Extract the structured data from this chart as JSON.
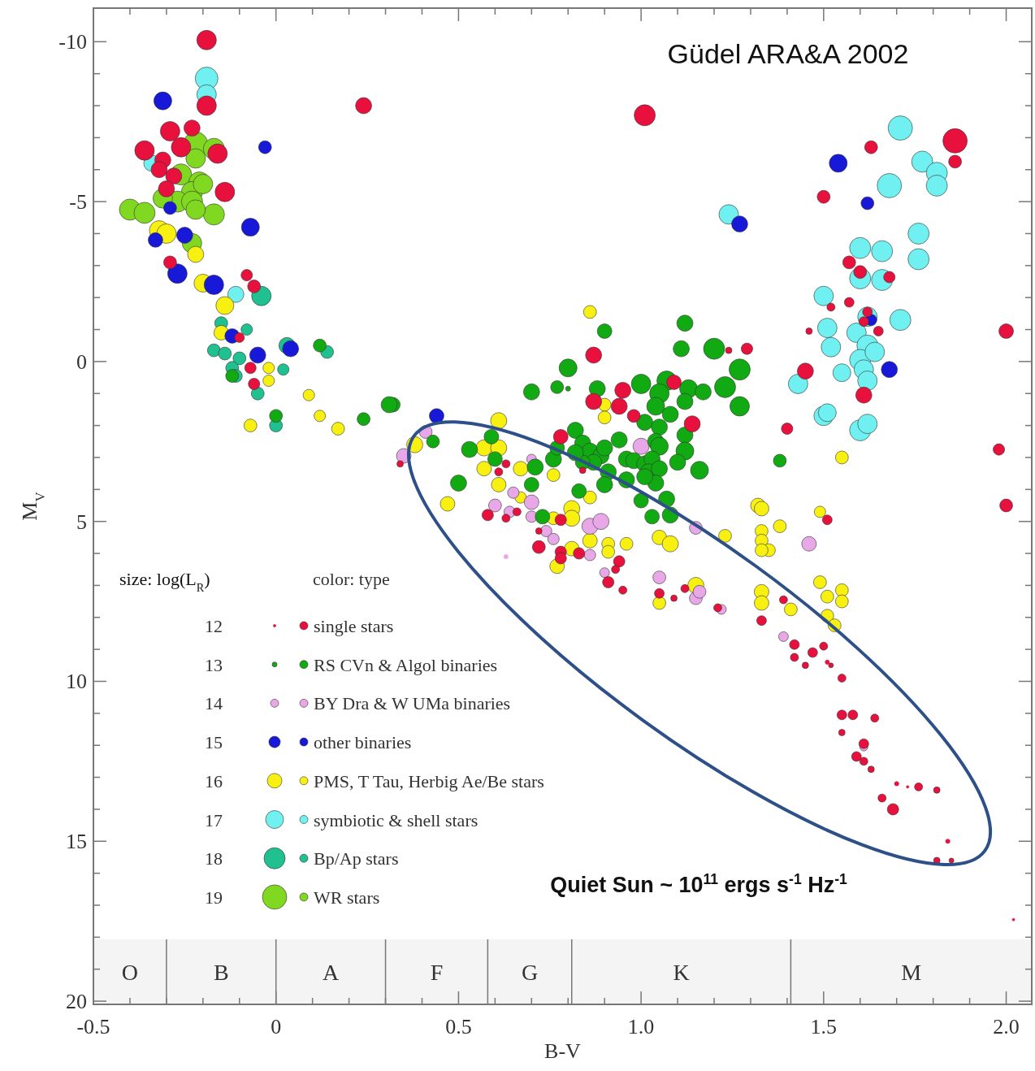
{
  "chart_data": {
    "type": "bubble",
    "xlabel": "B-V",
    "ylabel": "M$_{V}$",
    "legend_title": "color: type",
    "legend": "bottom left",
    "annotations": [
      "Güdel ARA&A 2002",
      "Quiet Sun ~ 10$^{11}$ ergs s$^{-1}$ Hz$^{-1}$",
      "size: log(L$_{R}$)"
    ],
    "xlim": [
      -0.5,
      2.07
    ],
    "ylim": [
      20.1,
      -11.05
    ],
    "xticks": [
      -0.5,
      {
        "value": -0.4,
        "label": null
      },
      {
        "value": -0.3,
        "label": null
      },
      {
        "value": -0.2,
        "label": null
      },
      {
        "value": -0.1,
        "label": null
      },
      0,
      {
        "value": 0.1,
        "label": null
      },
      {
        "value": 0.2,
        "label": null
      },
      {
        "value": 0.3,
        "label": null
      },
      {
        "value": 0.4,
        "label": null
      },
      0.5,
      {
        "value": 0.6,
        "label": null
      },
      {
        "value": 0.7,
        "label": null
      },
      {
        "value": 0.8,
        "label": null
      },
      {
        "value": 0.9,
        "label": null
      },
      {
        "value": 1,
        "label": "1.0"
      },
      {
        "value": 1.1,
        "label": null
      },
      {
        "value": 1.2,
        "label": null
      },
      {
        "value": 1.3,
        "label": null
      },
      {
        "value": 1.4,
        "label": null
      },
      1.5,
      {
        "value": 1.6,
        "label": null
      },
      {
        "value": 1.7,
        "label": null
      },
      {
        "value": 1.8,
        "label": null
      },
      {
        "value": 1.9,
        "label": null
      },
      {
        "value": 2,
        "label": "2.0"
      }
    ],
    "yticks": [
      -10,
      {
        "value": -9,
        "label": null
      },
      {
        "value": -8,
        "label": null
      },
      {
        "value": -7,
        "label": null
      },
      {
        "value": -6,
        "label": null
      },
      -5,
      {
        "value": -4,
        "label": null
      },
      {
        "value": -3,
        "label": null
      },
      {
        "value": -2,
        "label": null
      },
      {
        "value": -1,
        "label": null
      },
      0,
      {
        "value": 1,
        "label": null
      },
      {
        "value": 2,
        "label": null
      },
      {
        "value": 3,
        "label": null
      },
      {
        "value": 4,
        "label": null
      },
      5,
      {
        "value": 6,
        "label": null
      },
      {
        "value": 7,
        "label": null
      },
      {
        "value": 8,
        "label": null
      },
      {
        "value": 9,
        "label": null
      },
      10,
      {
        "value": 11,
        "label": null
      },
      {
        "value": 12,
        "label": null
      },
      {
        "value": 13,
        "label": null
      },
      {
        "value": 14,
        "label": null
      },
      15,
      {
        "value": 16,
        "label": null
      },
      {
        "value": 17,
        "label": null
      },
      {
        "value": 18,
        "label": null
      },
      {
        "value": 19,
        "label": null
      },
      20
    ],
    "size_legend": [
      {
        "value": 0.01,
        "label": "12"
      },
      {
        "value": 0.04,
        "label": "13"
      },
      {
        "value": 0.11,
        "label": "14"
      },
      {
        "value": 0.22,
        "label": "15"
      },
      {
        "value": 0.36,
        "label": "16"
      },
      {
        "value": 0.54,
        "label": "17"
      },
      {
        "value": 0.75,
        "label": "18"
      },
      {
        "value": 1,
        "label": "19"
      }
    ],
    "bands": [
      {
        "axis": "x",
        "from": -0.5,
        "to": -0.3,
        "label": "O",
        "color": "#f4f4f4"
      },
      {
        "axis": "x",
        "from": -0.3,
        "to": 0,
        "label": "B",
        "color": "#f4f4f4"
      },
      {
        "axis": "x",
        "from": 0,
        "to": 0.3,
        "label": "A",
        "color": "#f4f4f4"
      },
      {
        "axis": "x",
        "from": 0.3,
        "to": 0.58,
        "label": "F",
        "color": "#f4f4f4"
      },
      {
        "axis": "x",
        "from": 0.58,
        "to": 0.81,
        "label": "G",
        "color": "#f4f4f4"
      },
      {
        "axis": "x",
        "from": 0.81,
        "to": 1.41,
        "label": "K",
        "color": "#f4f4f4"
      },
      {
        "axis": "x",
        "from": 1.41,
        "to": 2.07,
        "label": "M",
        "color": "#f4f4f4"
      }
    ],
    "series": [
      {
        "name": "single stars",
        "color": "#e8103c",
        "x": [
          -0.19,
          -0.19,
          0.24,
          1.01,
          1.86,
          1.63,
          1.86,
          -0.36,
          -0.29,
          -0.23,
          -0.26,
          -0.31,
          -0.16,
          -0.28,
          -0.32,
          -0.14,
          -0.3,
          -0.29,
          -0.08,
          -0.06,
          -0.1,
          -0.07,
          -0.06,
          1.5,
          1.57,
          1.6,
          1.68,
          1.57,
          1.52,
          1.46,
          1.65,
          1.61,
          1.62,
          1.61,
          1.45,
          1.4,
          2.0,
          1.98,
          2.0,
          1.51,
          0.87,
          0.87,
          0.95,
          0.94,
          0.98,
          1.14,
          1.09,
          1.29,
          1.24,
          0.78,
          0.84,
          0.34,
          0.61,
          0.63,
          0.58,
          0.63,
          0.66,
          0.72,
          0.72,
          0.78,
          0.78,
          0.83,
          0.78,
          0.94,
          0.93,
          0.91,
          0.95,
          1.05,
          1.12,
          1.09,
          1.21,
          1.33,
          1.39,
          1.42,
          1.42,
          1.45,
          1.47,
          1.5,
          1.51,
          1.52,
          1.55,
          1.55,
          1.58,
          1.64,
          1.55,
          1.61,
          1.59,
          1.61,
          1.63,
          1.66,
          1.69,
          1.7,
          1.73,
          1.76,
          1.81,
          1.84,
          1.81,
          1.85,
          2.02
        ],
        "values": [
          -10.05,
          -8.0,
          -8.0,
          -7.7,
          -6.9,
          -6.7,
          -6.25,
          -6.6,
          -7.2,
          -7.3,
          -6.7,
          -6.3,
          -6.5,
          -5.8,
          -6.0,
          -5.3,
          -5.4,
          -3.1,
          -2.7,
          -2.35,
          -0.75,
          0.2,
          0.7,
          -5.15,
          -3.1,
          -2.8,
          -2.64,
          -1.85,
          -1.7,
          -0.95,
          -0.95,
          -1.25,
          -1.55,
          1.05,
          0.3,
          2.1,
          -0.95,
          2.75,
          4.5,
          4.95,
          -0.2,
          1.25,
          0.9,
          1.4,
          1.7,
          1.95,
          0.65,
          -0.4,
          -0.35,
          2.35,
          3.4,
          3.2,
          3.45,
          3.2,
          4.8,
          4.9,
          4.7,
          5.3,
          5.8,
          4.95,
          5.95,
          6.0,
          6.15,
          6.25,
          6.5,
          6.9,
          7.15,
          7.25,
          7.1,
          7.4,
          7.7,
          8.1,
          7.45,
          8.85,
          9.25,
          9.5,
          9.1,
          8.9,
          9.4,
          9.5,
          9.9,
          11.05,
          11.05,
          11.15,
          11.6,
          11.95,
          12.35,
          12.5,
          12.75,
          13.65,
          14.0,
          13.2,
          13.3,
          13.3,
          13.4,
          15.0,
          15.6,
          15.6,
          17.45
        ],
        "sizes": [
          0.64,
          0.64,
          0.44,
          0.75,
          1,
          0.28,
          0.28,
          0.64,
          0.64,
          0.44,
          0.64,
          0.44,
          0.64,
          0.44,
          0.44,
          0.64,
          0.44,
          0.28,
          0.22,
          0.28,
          0.16,
          0.22,
          0.22,
          0.28,
          0.28,
          0.28,
          0.22,
          0.16,
          0.11,
          0.07,
          0.16,
          0.16,
          0.16,
          0.44,
          0.44,
          0.22,
          0.36,
          0.22,
          0.28,
          0.16,
          0.44,
          0.44,
          0.44,
          0.44,
          0.28,
          0.44,
          0.36,
          0.22,
          0.07,
          0.36,
          0.07,
          0.07,
          0.11,
          0.11,
          0.22,
          0.11,
          0.11,
          0.07,
          0.28,
          0.22,
          0.22,
          0.22,
          0.22,
          0.22,
          0.11,
          0.22,
          0.11,
          0.16,
          0.11,
          0.07,
          0.11,
          0.16,
          0.11,
          0.16,
          0.11,
          0.07,
          0.16,
          0.11,
          0.03,
          0.04,
          0.11,
          0.16,
          0.16,
          0.11,
          0.07,
          0.16,
          0.16,
          0.11,
          0.07,
          0.11,
          0.22,
          0.03,
          0.01,
          0.11,
          0.07,
          0.03,
          0.07,
          0.04,
          0.01
        ]
      },
      {
        "name": "RS CVn & Algol binaries",
        "color": "#12aa12",
        "x": [
          1.12,
          0.9,
          1.11,
          1.2,
          1.27,
          1.23,
          1.27,
          0.8,
          0.7,
          0.77,
          0.8,
          0.88,
          1.0,
          1.07,
          1.05,
          1.13,
          1.17,
          1.12,
          1.04,
          1.08,
          1.01,
          1.05,
          1.04,
          1.12,
          1.12,
          0.94,
          1.05,
          1.1,
          1.16,
          0.96,
          0.98,
          1.01,
          1.03,
          1.02,
          1.05,
          1.04,
          1.01,
          0.96,
          1.07,
          1.0,
          1.03,
          1.08,
          0.82,
          0.84,
          0.86,
          0.89,
          0.9,
          0.87,
          0.84,
          0.76,
          0.77,
          0.82,
          0.91,
          0.9,
          0.83,
          0.7,
          0.71,
          0.6,
          0.59,
          0.53,
          0.5,
          0.43,
          0.32,
          0.73,
          -0.12,
          0.12,
          0.0,
          0.24,
          0.31,
          1.38
        ],
        "values": [
          -1.2,
          -0.95,
          -0.4,
          -0.4,
          0.25,
          0.8,
          1.4,
          0.2,
          0.95,
          0.8,
          0.85,
          0.85,
          0.7,
          0.6,
          1.0,
          0.85,
          0.95,
          1.25,
          1.4,
          1.65,
          1.9,
          2.05,
          2.5,
          2.3,
          2.8,
          2.45,
          2.65,
          3.15,
          3.4,
          3.05,
          3.1,
          3.2,
          3.05,
          3.45,
          3.35,
          3.8,
          3.6,
          3.7,
          4.3,
          4.35,
          4.85,
          4.8,
          2.15,
          2.55,
          2.8,
          2.95,
          2.7,
          3.15,
          3.15,
          3.05,
          2.7,
          2.85,
          3.45,
          3.85,
          4.05,
          3.85,
          3.3,
          3.05,
          2.35,
          2.75,
          3.8,
          2.5,
          1.35,
          4.85,
          0.45,
          -0.5,
          1.7,
          1.8,
          1.35,
          3.1
        ],
        "sizes": [
          0.44,
          0.36,
          0.44,
          0.75,
          0.75,
          0.75,
          0.64,
          0.54,
          0.44,
          0.28,
          0.04,
          0.44,
          0.64,
          0.64,
          0.64,
          0.54,
          0.44,
          0.44,
          0.54,
          0.44,
          0.44,
          0.44,
          0.44,
          0.44,
          0.54,
          0.44,
          0.54,
          0.44,
          0.54,
          0.44,
          0.44,
          0.44,
          0.44,
          0.44,
          0.44,
          0.44,
          0.44,
          0.44,
          0.44,
          0.36,
          0.36,
          0.44,
          0.44,
          0.44,
          0.44,
          0.44,
          0.44,
          0.44,
          0.36,
          0.44,
          0.36,
          0.44,
          0.44,
          0.44,
          0.36,
          0.36,
          0.44,
          0.36,
          0.36,
          0.44,
          0.44,
          0.28,
          0.36,
          0.36,
          0.28,
          0.28,
          0.28,
          0.28,
          0.44,
          0.28
        ]
      },
      {
        "name": "BY Dra & W UMa binaries",
        "color": "#e8a8e8",
        "x": [
          0.41,
          0.35,
          0.7,
          1.0,
          0.7,
          0.65,
          0.6,
          0.64,
          0.7,
          0.74,
          0.76,
          0.86,
          0.89,
          0.86,
          0.9,
          1.05,
          1.15,
          1.22,
          1.15,
          0.63,
          1.46,
          1.39,
          1.61,
          1.16
        ],
        "values": [
          2.2,
          2.95,
          3.05,
          2.65,
          4.4,
          4.1,
          4.5,
          4.7,
          4.85,
          5.3,
          5.55,
          5.15,
          5.0,
          6.05,
          6.6,
          6.75,
          7.4,
          7.75,
          5.2,
          6.1,
          5.7,
          8.6,
          12.05,
          7.2
        ],
        "sizes": [
          0.28,
          0.36,
          0.16,
          0.44,
          0.36,
          0.22,
          0.28,
          0.22,
          0.22,
          0.22,
          0.22,
          0.44,
          0.44,
          0.22,
          0.16,
          0.28,
          0.28,
          0.16,
          0.28,
          0.03,
          0.36,
          0.16,
          0.11,
          0.28
        ]
      },
      {
        "name": "other binaries",
        "color": "#1818d8",
        "x": [
          -0.31,
          -0.03,
          -0.07,
          -0.29,
          -0.33,
          -0.25,
          -0.27,
          -0.17,
          -0.12,
          -0.05,
          0.04,
          1.54,
          1.62,
          1.27,
          1.68,
          1.63,
          0.44
        ],
        "values": [
          -8.15,
          -6.7,
          -4.2,
          -4.8,
          -3.8,
          -3.95,
          -2.75,
          -2.4,
          -0.8,
          -0.2,
          -0.4,
          -6.2,
          -4.95,
          -4.3,
          0.25,
          -1.3,
          1.7
        ],
        "sizes": [
          0.54,
          0.28,
          0.54,
          0.28,
          0.36,
          0.44,
          0.64,
          0.64,
          0.36,
          0.44,
          0.44,
          0.54,
          0.28,
          0.44,
          0.44,
          0.22,
          0.36
        ]
      },
      {
        "name": "PMS, T Tau, Herbig Ae/Be stars",
        "color": "#f8f010",
        "x": [
          -0.32,
          -0.3,
          -0.22,
          -0.2,
          -0.14,
          -0.15,
          -0.02,
          -0.02,
          0.09,
          0.12,
          0.17,
          -0.07,
          0.86,
          0.61,
          0.9,
          0.9,
          0.38,
          0.57,
          0.61,
          0.57,
          0.67,
          0.61,
          0.76,
          0.86,
          0.47,
          0.67,
          0.76,
          0.81,
          0.81,
          0.86,
          0.91,
          0.91,
          0.96,
          0.77,
          0.81,
          1.05,
          1.08,
          1.23,
          1.15,
          1.05,
          1.32,
          1.55,
          1.33,
          1.38,
          1.33,
          1.33,
          1.35,
          1.33,
          1.49,
          1.49,
          1.51,
          1.55,
          1.55,
          1.33,
          1.33,
          1.51,
          1.53,
          1.41
        ],
        "values": [
          -4.1,
          -4.0,
          -3.35,
          -2.45,
          -1.75,
          -0.9,
          0.2,
          0.6,
          1.05,
          1.7,
          2.1,
          2.0,
          -1.55,
          1.85,
          1.35,
          1.75,
          2.6,
          2.7,
          2.7,
          3.35,
          3.35,
          3.85,
          3.55,
          4.25,
          4.45,
          4.25,
          4.9,
          4.6,
          4.9,
          5.6,
          5.7,
          5.95,
          5.7,
          6.4,
          5.85,
          5.5,
          5.7,
          5.45,
          7.0,
          7.55,
          4.5,
          3.0,
          4.6,
          5.15,
          5.3,
          5.6,
          5.9,
          5.9,
          4.7,
          6.9,
          7.35,
          7.15,
          7.5,
          7.2,
          7.55,
          7.95,
          8.25,
          7.75
        ],
        "sizes": [
          0.64,
          0.64,
          0.44,
          0.54,
          0.54,
          0.36,
          0.22,
          0.22,
          0.22,
          0.22,
          0.28,
          0.28,
          0.28,
          0.44,
          0.28,
          0.28,
          0.44,
          0.44,
          0.44,
          0.36,
          0.36,
          0.36,
          0.28,
          0.28,
          0.36,
          0.22,
          0.28,
          0.44,
          0.44,
          0.36,
          0.28,
          0.28,
          0.28,
          0.36,
          0.36,
          0.36,
          0.44,
          0.28,
          0.44,
          0.28,
          0.36,
          0.28,
          0.36,
          0.28,
          0.28,
          0.28,
          0.28,
          0.28,
          0.22,
          0.28,
          0.28,
          0.28,
          0.28,
          0.36,
          0.36,
          0.28,
          0.28,
          0.28
        ]
      },
      {
        "name": "symbiotic & shell stars",
        "color": "#70f0f0",
        "x": [
          -0.19,
          -0.19,
          -0.34,
          -0.11,
          1.24,
          1.71,
          1.77,
          1.81,
          1.81,
          1.68,
          1.6,
          1.66,
          1.76,
          1.76,
          1.66,
          1.6,
          1.5,
          1.71,
          1.51,
          1.52,
          1.62,
          1.59,
          1.62,
          1.6,
          1.64,
          1.55,
          1.61,
          1.62,
          1.43,
          1.5,
          1.6,
          1.62,
          1.51
        ],
        "values": [
          -8.85,
          -8.35,
          -6.2,
          -2.1,
          -4.6,
          -7.3,
          -6.25,
          -5.9,
          -5.5,
          -5.5,
          -3.55,
          -3.45,
          -4.0,
          -3.2,
          -2.55,
          -2.6,
          -2.05,
          -1.3,
          -1.05,
          -0.45,
          -1.4,
          -0.9,
          -0.5,
          -0.05,
          -0.3,
          0.35,
          0.25,
          0.6,
          0.7,
          1.7,
          2.15,
          1.95,
          1.6
        ],
        "sizes": [
          0.87,
          0.64,
          0.44,
          0.44,
          0.64,
          1,
          0.75,
          0.75,
          0.75,
          1,
          0.75,
          0.75,
          0.75,
          0.75,
          0.75,
          0.75,
          0.64,
          0.75,
          0.64,
          0.64,
          0.64,
          0.64,
          0.75,
          0.75,
          0.64,
          0.54,
          0.64,
          0.64,
          0.64,
          0.64,
          0.75,
          0.64,
          0.54
        ]
      },
      {
        "name": "Bp/Ap stars",
        "color": "#20c090",
        "x": [
          -0.04,
          -0.15,
          -0.08,
          -0.17,
          -0.14,
          -0.1,
          -0.12,
          -0.11,
          -0.05,
          0.02,
          0.03,
          0.14,
          0.0
        ],
        "values": [
          -2.05,
          -1.2,
          -1.0,
          -0.35,
          -0.25,
          -0.1,
          0.2,
          0.45,
          1.0,
          0.25,
          -0.5,
          -0.3,
          2.0
        ],
        "sizes": [
          0.64,
          0.28,
          0.22,
          0.28,
          0.28,
          0.28,
          0.28,
          0.28,
          0.28,
          0.22,
          0.44,
          0.28,
          0.28
        ]
      },
      {
        "name": "WR stars",
        "color": "#80d820",
        "x": [
          -0.4,
          -0.36,
          -0.22,
          -0.17,
          -0.26,
          -0.21,
          -0.23,
          -0.27,
          -0.23,
          -0.17,
          -0.22,
          -0.2,
          -0.22,
          -0.31,
          -0.23
        ],
        "values": [
          -4.75,
          -4.65,
          -6.8,
          -6.65,
          -5.85,
          -5.6,
          -5.3,
          -5.0,
          -5.0,
          -4.6,
          -4.75,
          -5.55,
          -6.35,
          -5.1,
          -3.7
        ],
        "sizes": [
          0.75,
          0.75,
          1,
          0.75,
          0.75,
          0.75,
          0.75,
          0.75,
          0.75,
          0.75,
          0.64,
          0.64,
          0.64,
          0.64,
          0.64
        ]
      }
    ]
  }
}
